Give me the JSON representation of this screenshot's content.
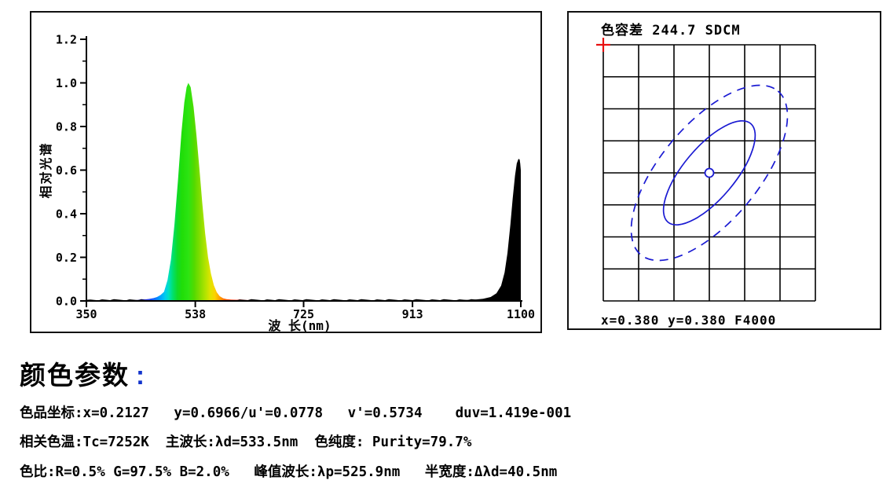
{
  "page": {
    "background": "#ffffff"
  },
  "chart_data": [
    {
      "id": "spectrum",
      "type": "area",
      "xlabel": "波 长(nm)",
      "ylabel": "相对光谱",
      "xlim": [
        350,
        1100
      ],
      "ylim": [
        0.0,
        1.2
      ],
      "x_ticks": [
        350,
        538,
        725,
        913,
        1100
      ],
      "y_ticks": [
        0.0,
        0.2,
        0.4,
        0.6,
        0.8,
        1.0,
        1.2
      ],
      "y_minor_ticks": [
        0.1,
        0.3,
        0.5,
        0.7,
        0.9,
        1.1
      ],
      "peak_wavelength_nm": 525.9,
      "half_width_nm": 40.5,
      "series": [
        {
          "name": "visible-peak",
          "fill": "spectral-gradient",
          "points": [
            [
              350,
              0.003
            ],
            [
              400,
              0.003
            ],
            [
              435,
              0.004
            ],
            [
              448,
              0.006
            ],
            [
              458,
              0.009
            ],
            [
              466,
              0.013
            ],
            [
              472,
              0.018
            ],
            [
              478,
              0.027
            ],
            [
              484,
              0.042
            ],
            [
              490,
              0.095
            ],
            [
              496,
              0.19
            ],
            [
              502,
              0.35
            ],
            [
              508,
              0.55
            ],
            [
              514,
              0.77
            ],
            [
              519,
              0.91
            ],
            [
              523,
              0.98
            ],
            [
              526,
              1.0
            ],
            [
              530,
              0.98
            ],
            [
              535,
              0.89
            ],
            [
              540,
              0.76
            ],
            [
              545,
              0.61
            ],
            [
              550,
              0.45
            ],
            [
              555,
              0.31
            ],
            [
              560,
              0.2
            ],
            [
              565,
              0.125
            ],
            [
              570,
              0.072
            ],
            [
              575,
              0.04
            ],
            [
              580,
              0.022
            ],
            [
              586,
              0.012
            ],
            [
              592,
              0.008
            ],
            [
              600,
              0.006
            ],
            [
              610,
              0.005
            ],
            [
              622,
              0.004
            ],
            [
              640,
              0.0035
            ],
            [
              660,
              0.003
            ],
            [
              685,
              0.003
            ],
            [
              710,
              0.003
            ]
          ],
          "gradient_stops": [
            [
              350,
              "#000000"
            ],
            [
              430,
              "#05052a"
            ],
            [
              445,
              "#0a0a8c"
            ],
            [
              456,
              "#2233e8"
            ],
            [
              466,
              "#1464ff"
            ],
            [
              476,
              "#009cff"
            ],
            [
              486,
              "#00ccee"
            ],
            [
              492,
              "#00e0c0"
            ],
            [
              499,
              "#00e070"
            ],
            [
              507,
              "#10da28"
            ],
            [
              515,
              "#20dd08"
            ],
            [
              526,
              "#2ce412"
            ],
            [
              536,
              "#52da00"
            ],
            [
              546,
              "#84dd00"
            ],
            [
              556,
              "#b4e400"
            ],
            [
              564,
              "#e0e400"
            ],
            [
              572,
              "#fcd200"
            ],
            [
              581,
              "#ff9c00"
            ],
            [
              590,
              "#ff6000"
            ],
            [
              600,
              "#fa3000"
            ],
            [
              612,
              "#e41400"
            ],
            [
              626,
              "#c40000"
            ],
            [
              645,
              "#860000"
            ],
            [
              668,
              "#3c0000"
            ],
            [
              695,
              "#0c0000"
            ],
            [
              700,
              "#000000"
            ]
          ]
        },
        {
          "name": "ir-peak",
          "fill": "#000000",
          "points": [
            [
              900,
              0.003
            ],
            [
              960,
              0.003
            ],
            [
              1000,
              0.004
            ],
            [
              1020,
              0.006
            ],
            [
              1035,
              0.01
            ],
            [
              1048,
              0.018
            ],
            [
              1058,
              0.035
            ],
            [
              1066,
              0.07
            ],
            [
              1072,
              0.13
            ],
            [
              1077,
              0.22
            ],
            [
              1082,
              0.35
            ],
            [
              1086,
              0.47
            ],
            [
              1090,
              0.575
            ],
            [
              1093,
              0.63
            ],
            [
              1096,
              0.652
            ],
            [
              1098,
              0.648
            ],
            [
              1099,
              0.63
            ],
            [
              1100,
              0.6
            ]
          ]
        }
      ]
    },
    {
      "id": "color-tolerance",
      "type": "scatter",
      "title": "色容差 244.7 SDCM",
      "sdcm": 244.7,
      "footer": "x=0.380 y=0.380 F4000",
      "center": {
        "x": 0.38,
        "y": 0.38,
        "reference": "F4000"
      },
      "grid": {
        "cols": 6,
        "rows": 8
      },
      "marker": {
        "x_cells": 3,
        "y_cells": 4
      },
      "ellipses": [
        {
          "style": "solid",
          "rx_cells": 1.82,
          "ry_cells": 0.73,
          "angle_deg": -50
        },
        {
          "style": "dashed",
          "rx_cells": 3.02,
          "ry_cells": 1.38,
          "angle_deg": -50
        }
      ],
      "colors": {
        "ellipse": "#1a1ad2",
        "marker_cross": "#e81010",
        "grid": "#000000"
      }
    }
  ],
  "color_parameters": {
    "title": "颜色参数",
    "title_colon": ":",
    "lines": [
      "色品坐标:x=0.2127   y=0.6966/u'=0.0778   v'=0.5734    duv=1.419e-001",
      "相关色温:Tc=7252K  主波长:λd=533.5nm  色纯度: Purity=79.7%",
      "色比:R=0.5% G=97.5% B=2.0%   峰值波长:λp=525.9nm   半宽度:Δλd=40.5nm"
    ]
  }
}
